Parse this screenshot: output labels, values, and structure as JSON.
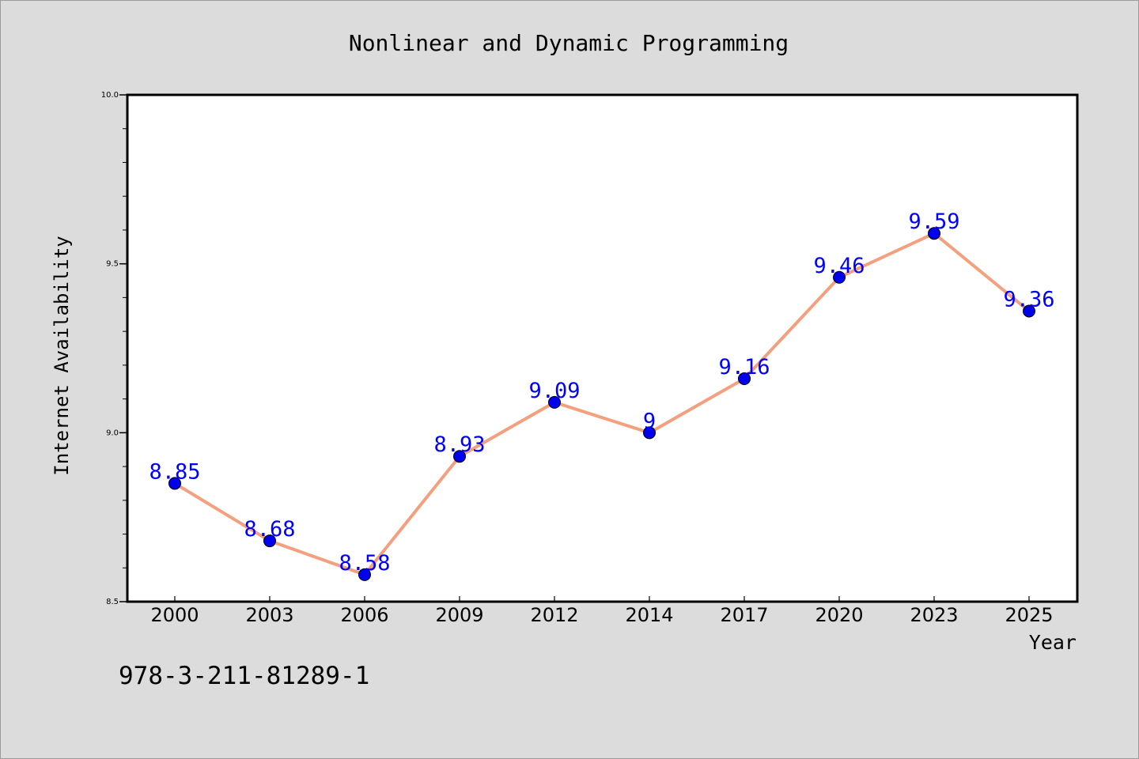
{
  "chart_data": {
    "type": "line",
    "title": "Nonlinear and Dynamic Programming",
    "xlabel": "Year",
    "ylabel": "Internet Availability",
    "categories": [
      "2000",
      "2003",
      "2006",
      "2009",
      "2012",
      "2014",
      "2017",
      "2020",
      "2023",
      "2025"
    ],
    "values": [
      8.85,
      8.68,
      8.58,
      8.93,
      9.09,
      9.0,
      9.16,
      9.46,
      9.59,
      9.36
    ],
    "data_labels": [
      "8.85",
      "8.68",
      "8.58",
      "8.93",
      "9.09",
      "9",
      "9.16",
      "9.46",
      "9.59",
      "9.36"
    ],
    "ylim": [
      8.5,
      10.0
    ],
    "yticks": [
      8.5,
      9.0,
      9.5,
      10.0
    ],
    "ytick_labels": [
      "8.5",
      "9.0",
      "9.5",
      "10.0"
    ],
    "grid": false,
    "line_color": "#f4a07f",
    "marker_color": "#0000ee",
    "label_color": "#0000ff",
    "background_color": "#dcdcdc",
    "plot_background_color": "#ffffff"
  },
  "footer": {
    "isbn": "978-3-211-81289-1"
  }
}
